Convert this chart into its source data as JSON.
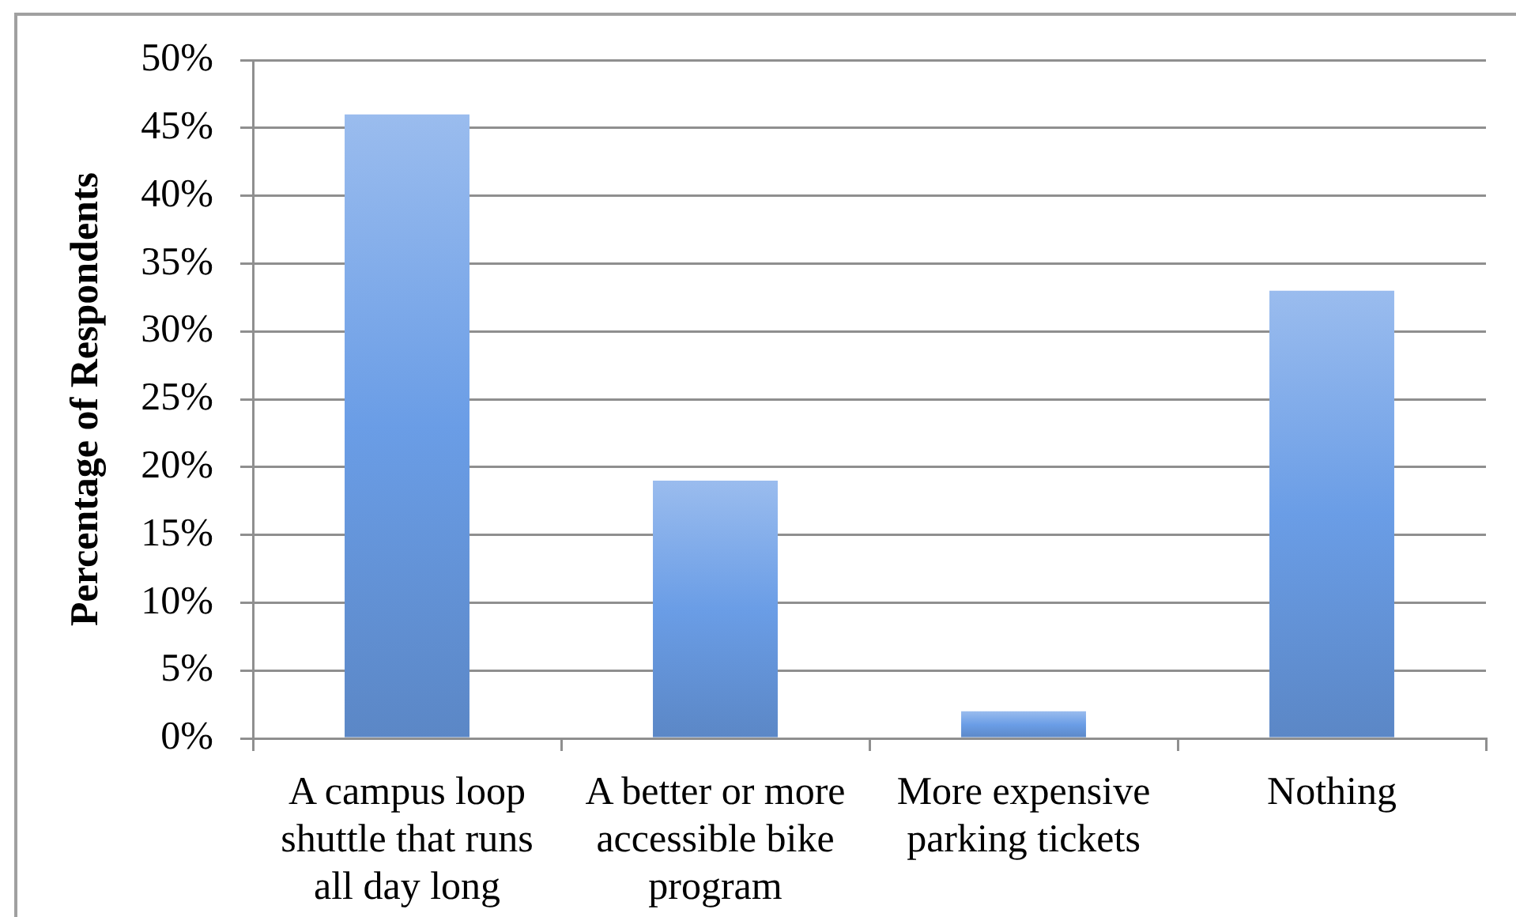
{
  "chart_data": {
    "type": "bar",
    "ylabel": "Percentage of Respondents",
    "categories": [
      "A campus loop shuttle that runs all day long",
      "A better or more accessible bike program",
      "More expensive parking tickets",
      "Nothing"
    ],
    "values": [
      46,
      19,
      2,
      33
    ],
    "color": "#6a9de6",
    "ylim": [
      0,
      50
    ],
    "yticks": [
      {
        "value": 0,
        "label": "0%"
      },
      {
        "value": 5,
        "label": "5%"
      },
      {
        "value": 10,
        "label": "10%"
      },
      {
        "value": 15,
        "label": "15%"
      },
      {
        "value": 20,
        "label": "20%"
      },
      {
        "value": 25,
        "label": "25%"
      },
      {
        "value": 30,
        "label": "30%"
      },
      {
        "value": 35,
        "label": "35%"
      },
      {
        "value": 40,
        "label": "40%"
      },
      {
        "value": 45,
        "label": "45%"
      },
      {
        "value": 50,
        "label": "50%"
      }
    ],
    "grid": "y",
    "legend": false
  }
}
